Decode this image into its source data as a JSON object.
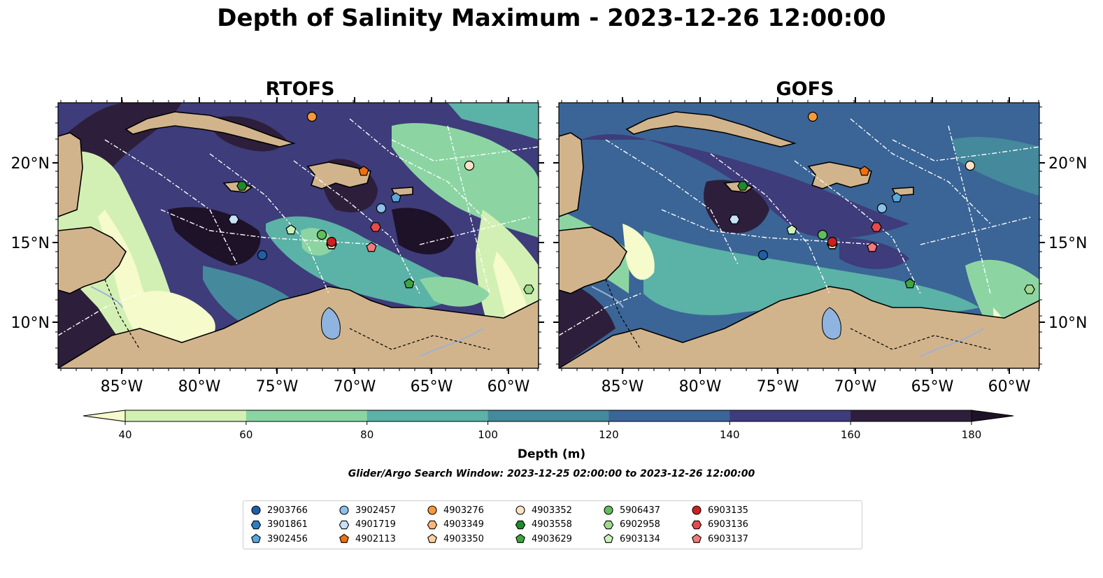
{
  "figure_title": "Depth of Salinity Maximum - 2023-12-26 12:00:00",
  "maps": [
    {
      "title": "RTOFS"
    },
    {
      "title": "GOFS"
    }
  ],
  "lon_ticks": [
    "85°W",
    "80°W",
    "75°W",
    "70°W",
    "65°W",
    "60°W"
  ],
  "lat_ticks": [
    "20°N",
    "15°N",
    "10°N"
  ],
  "colorbar": {
    "label": "Depth (m)",
    "ticks": [
      "40",
      "60",
      "80",
      "100",
      "120",
      "140",
      "160",
      "180"
    ],
    "colors": [
      "#f6fbcb",
      "#d3f0b4",
      "#8cd5a3",
      "#5bb2a6",
      "#45899c",
      "#3b6596",
      "#3e3c7a",
      "#2d1f3b",
      "#1e1229"
    ]
  },
  "search_window": "Glider/Argo Search Window: 2023-12-25 02:00:00 to 2023-12-26 12:00:00",
  "colors": {
    "land": "#d2b48c",
    "river": "#9db3d6",
    "lake": "#8fb4e0"
  },
  "legend": [
    {
      "id": "2903766",
      "marker": "circle",
      "color": "#1f5fa8"
    },
    {
      "id": "3901861",
      "marker": "hexagon",
      "color": "#2c7fc0"
    },
    {
      "id": "3902456",
      "marker": "pentagon",
      "color": "#5aa7dc"
    },
    {
      "id": "3902457",
      "marker": "circle",
      "color": "#8ec1e9"
    },
    {
      "id": "4901719",
      "marker": "hexagon",
      "color": "#c7e1f6"
    },
    {
      "id": "4902113",
      "marker": "pentagon",
      "color": "#ef6f0e"
    },
    {
      "id": "4903276",
      "marker": "circle",
      "color": "#f89a3a"
    },
    {
      "id": "4903349",
      "marker": "hexagon",
      "color": "#fbb77b"
    },
    {
      "id": "4903350",
      "marker": "pentagon",
      "color": "#fdd0a4"
    },
    {
      "id": "4903352",
      "marker": "circle",
      "color": "#fde2c6"
    },
    {
      "id": "4903558",
      "marker": "hexagon",
      "color": "#1f8a2a"
    },
    {
      "id": "4903629",
      "marker": "pentagon",
      "color": "#3ea540"
    },
    {
      "id": "5906437",
      "marker": "circle",
      "color": "#63bd5c"
    },
    {
      "id": "6902958",
      "marker": "hexagon",
      "color": "#a0d98e"
    },
    {
      "id": "6903134",
      "marker": "pentagon",
      "color": "#ccf0bc"
    },
    {
      "id": "6903135",
      "marker": "circle",
      "color": "#d01f1f"
    },
    {
      "id": "6903136",
      "marker": "hexagon",
      "color": "#e84a4a"
    },
    {
      "id": "6903137",
      "marker": "pentagon",
      "color": "#f27a7a"
    }
  ]
}
